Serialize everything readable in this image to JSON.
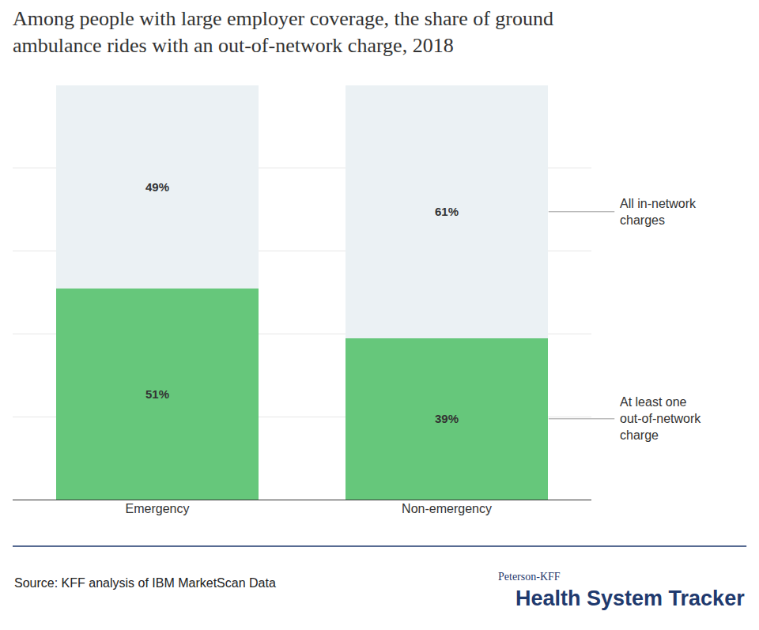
{
  "chart_data": {
    "type": "bar",
    "title": "Among people with large employer coverage, the share of ground ambulance rides with an out-of-network charge, 2018",
    "categories": [
      "Emergency",
      "Non-emergency"
    ],
    "series": [
      {
        "name": "At least one out-of-network charge",
        "color": "#66c77b",
        "values": [
          51,
          39
        ],
        "value_labels": [
          "51%",
          "39%"
        ]
      },
      {
        "name": "All in-network charges",
        "color": "#ebf1f4",
        "values": [
          49,
          61
        ],
        "value_labels": [
          "49%",
          "61%"
        ]
      }
    ],
    "stacked": true,
    "data_labels": true,
    "ylim": [
      0,
      100
    ],
    "yticks": [
      0,
      20,
      40,
      60,
      80,
      100
    ],
    "grid": true,
    "tick_labels": "x",
    "legend": "right",
    "source": "Source: KFF analysis of IBM MarketScan Data",
    "credit": [
      "Peterson-KFF",
      "Health System Tracker"
    ]
  }
}
